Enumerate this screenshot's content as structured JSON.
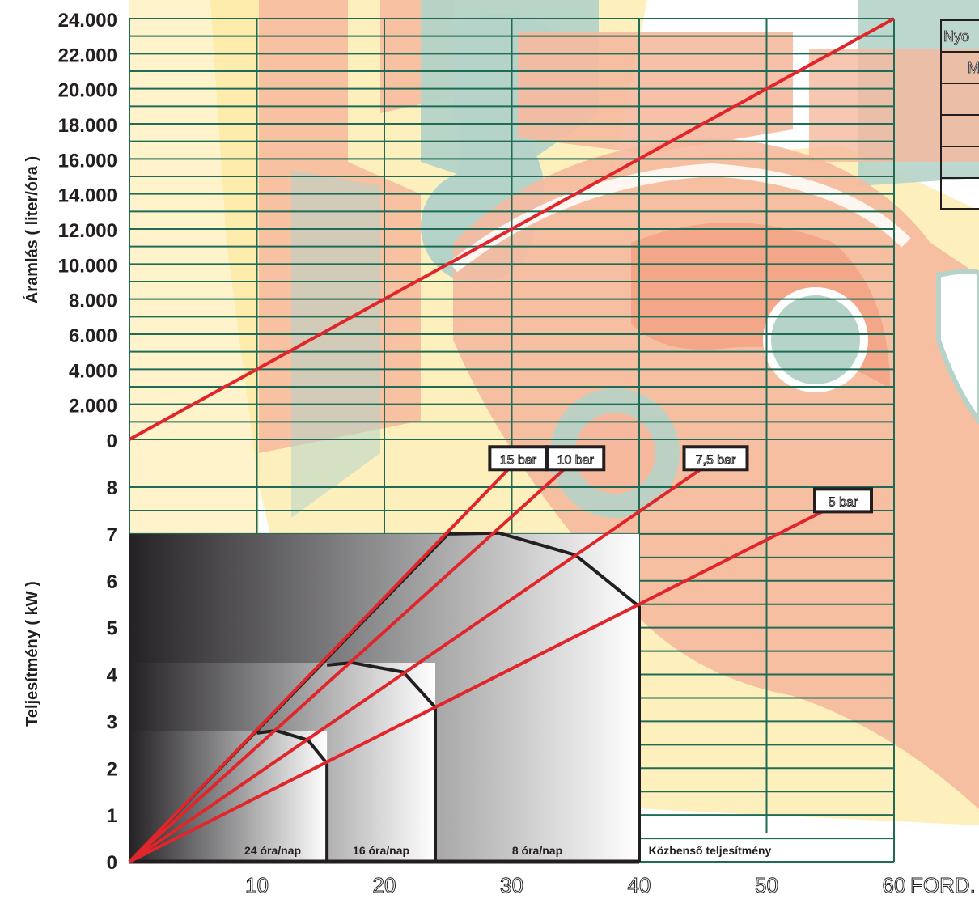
{
  "chart_data": [
    {
      "type": "line",
      "ylabel": "Áramlás ( liter/óra )",
      "x_ticks": [
        "10",
        "20",
        "30",
        "40",
        "50",
        "60"
      ],
      "x_unit": "FORD.",
      "y_ticks": [
        "0",
        "2.000",
        "4.000",
        "6.000",
        "8.000",
        "10.000",
        "12.000",
        "14.000",
        "16.000",
        "18.000",
        "20.000",
        "22.000",
        "24.000"
      ],
      "xlim": [
        0,
        60
      ],
      "ylim": [
        0,
        24000
      ],
      "series": [
        {
          "x": [
            0,
            60
          ],
          "y": [
            0,
            24000
          ]
        }
      ],
      "legend_table": {
        "visible_cells": [
          "Nyo",
          "M"
        ]
      }
    },
    {
      "type": "line",
      "ylabel": "Teljesítmény ( kW )",
      "x_ticks": [
        "10",
        "20",
        "30",
        "40",
        "50",
        "60"
      ],
      "x_unit": "FORD.",
      "y_ticks": [
        "0",
        "1",
        "2",
        "3",
        "4",
        "5",
        "6",
        "7",
        "8"
      ],
      "xlim": [
        0,
        60
      ],
      "ylim": [
        0,
        8
      ],
      "series": [
        {
          "name": "15 bar",
          "x": [
            0,
            30.5
          ],
          "y": [
            0,
            8.6
          ]
        },
        {
          "name": "10 bar",
          "x": [
            0,
            35
          ],
          "y": [
            0,
            8.6
          ]
        },
        {
          "name": "7,5 bar",
          "x": [
            0,
            46
          ],
          "y": [
            0,
            8.6
          ]
        },
        {
          "name": "5 bar",
          "x": [
            0,
            56
          ],
          "y": [
            0,
            7.7
          ]
        }
      ],
      "zones": [
        {
          "label": "24 óra/nap",
          "x_end": 15.5,
          "y_max": 2.8,
          "boundary": [
            [
              10,
              2.75
            ],
            [
              11.5,
              2.8
            ],
            [
              14,
              2.6
            ],
            [
              15.5,
              2.1
            ],
            [
              15.5,
              0
            ]
          ]
        },
        {
          "label": "16 óra/nap",
          "x_end": 24,
          "y_max": 4.25,
          "boundary": [
            [
              15.5,
              4.2
            ],
            [
              17.5,
              4.25
            ],
            [
              21.5,
              4.05
            ],
            [
              24,
              3.3
            ],
            [
              24,
              0
            ]
          ]
        },
        {
          "label": "8 óra/nap",
          "x_end": 40,
          "y_max": 7,
          "boundary": [
            [
              25,
              7.0
            ],
            [
              29,
              7.02
            ],
            [
              35,
              6.55
            ],
            [
              40,
              5.45
            ],
            [
              40,
              0
            ]
          ]
        },
        {
          "label": "Közbenső teljesítmény"
        }
      ]
    }
  ]
}
